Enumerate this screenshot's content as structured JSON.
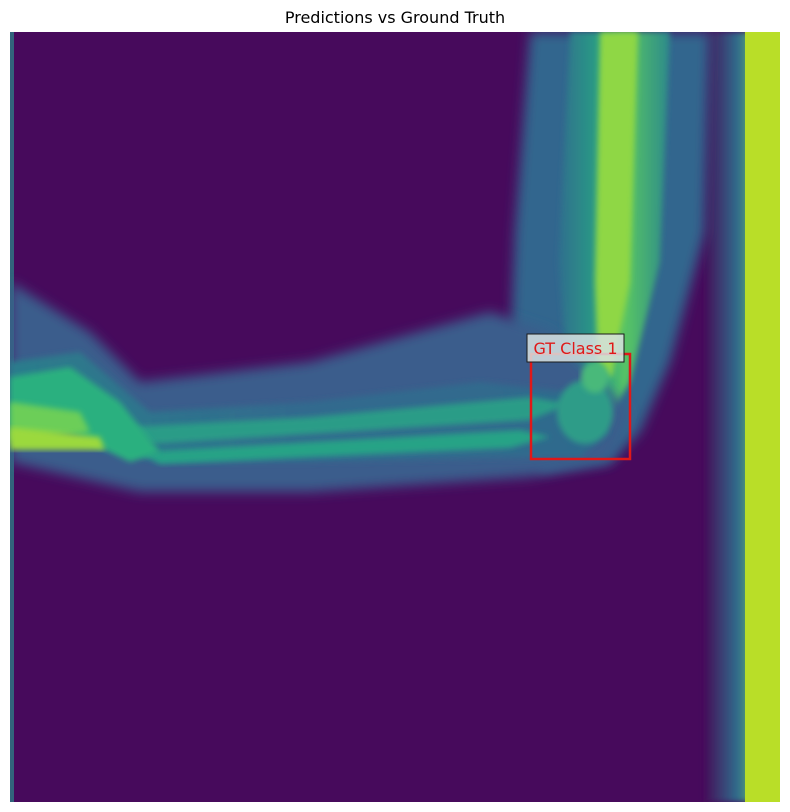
{
  "title": "Predictions vs Ground Truth",
  "annotations": [
    {
      "label": "GT Class 1",
      "box_color": "#e01818",
      "label_color": "#e01818",
      "label_bg": "#d8e2e2"
    }
  ],
  "colormap": "viridis",
  "colors": {
    "background": "#470a5c",
    "bone": "#8fd744",
    "tissue": "#3b5f8c"
  }
}
